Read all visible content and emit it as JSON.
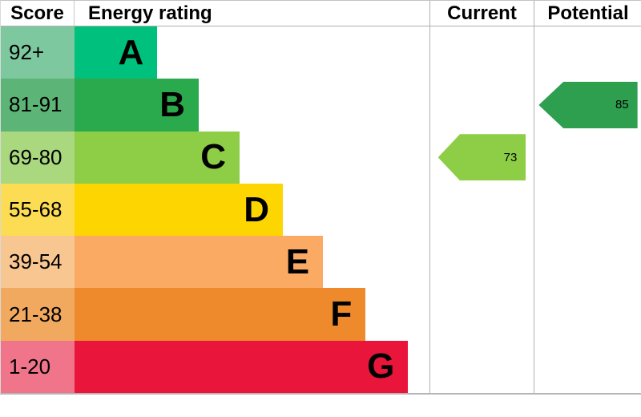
{
  "header": {
    "score": "Score",
    "rating": "Energy rating",
    "current": "Current",
    "potential": "Potential"
  },
  "colors": {
    "grid_line": "#b0b0b0",
    "text": "#000000",
    "background": "#ffffff"
  },
  "chart_data": {
    "type": "bar",
    "title": "Energy rating",
    "categories": [
      "A",
      "B",
      "C",
      "D",
      "E",
      "F",
      "G"
    ],
    "bands": [
      {
        "letter": "A",
        "score": "92+",
        "bar_color": "#00c07d",
        "score_color": "#7ec8a0",
        "width_pct": 23.3
      },
      {
        "letter": "B",
        "score": "81-91",
        "bar_color": "#2aa94d",
        "score_color": "#5cb576",
        "width_pct": 35.0
      },
      {
        "letter": "C",
        "score": "69-80",
        "bar_color": "#8dce46",
        "score_color": "#a9d87f",
        "width_pct": 46.5
      },
      {
        "letter": "D",
        "score": "55-68",
        "bar_color": "#fdd500",
        "score_color": "#fbdc52",
        "width_pct": 58.7
      },
      {
        "letter": "E",
        "score": "39-54",
        "bar_color": "#fbaa64",
        "score_color": "#f8c690",
        "width_pct": 70.0
      },
      {
        "letter": "F",
        "score": "21-38",
        "bar_color": "#ef8a2c",
        "score_color": "#f1a95f",
        "width_pct": 82.0
      },
      {
        "letter": "G",
        "score": "1-20",
        "bar_color": "#e9153b",
        "score_color": "#f0758b",
        "width_pct": 94.0
      }
    ],
    "current": {
      "value": 73,
      "band": "C",
      "color": "#8dce46"
    },
    "potential": {
      "value": 85,
      "band": "B",
      "color": "#2d9f4e"
    }
  }
}
